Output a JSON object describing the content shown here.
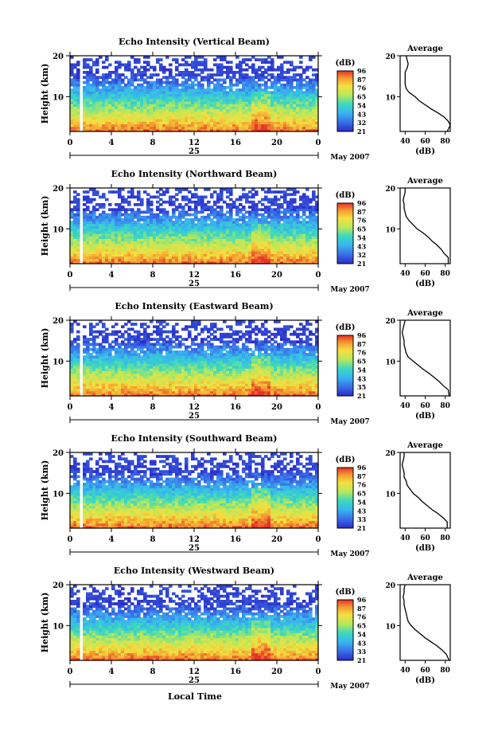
{
  "figure": {
    "xlabel": "Local Time",
    "month_label": "May 2007",
    "day_label": "25",
    "ylabel": "Height (km)",
    "colorbar_unit": "(dB)",
    "avg_title": "Average",
    "avg_xlabel": "(dB)"
  },
  "chart_data": [
    {
      "type": "heatmap",
      "title": "Echo Intensity (Vertical Beam)",
      "ylabel": "Height (km)",
      "xticks": [
        "0",
        "4",
        "8",
        "12",
        "16",
        "20",
        "0"
      ],
      "xlim": [
        0,
        24
      ],
      "yticks": [
        "10",
        "20"
      ],
      "ylim": [
        1.5,
        20
      ],
      "colorbar_ticks": [
        "96",
        "87",
        "76",
        "65",
        "54",
        "43",
        "32",
        "21"
      ],
      "avg_xticks": [
        "40",
        "60",
        "80"
      ],
      "avg_xlim": [
        35,
        85
      ],
      "avg_profile": [
        [
          1.5,
          82
        ],
        [
          3,
          85
        ],
        [
          4,
          83
        ],
        [
          5,
          79
        ],
        [
          6,
          73
        ],
        [
          7,
          66
        ],
        [
          8,
          60
        ],
        [
          9,
          54
        ],
        [
          10,
          50
        ],
        [
          11,
          44
        ],
        [
          12,
          41
        ],
        [
          13,
          40
        ],
        [
          14,
          40
        ],
        [
          15,
          40
        ],
        [
          16,
          40
        ],
        [
          17,
          42
        ],
        [
          18,
          43
        ],
        [
          19,
          42
        ],
        [
          20,
          41
        ]
      ]
    },
    {
      "type": "heatmap",
      "title": "Echo Intensity (Northward Beam)",
      "ylabel": "Height (km)",
      "xticks": [
        "0",
        "4",
        "8",
        "12",
        "16",
        "20",
        "0"
      ],
      "xlim": [
        0,
        24
      ],
      "yticks": [
        "10",
        "20"
      ],
      "ylim": [
        1.5,
        20
      ],
      "colorbar_ticks": [
        "96",
        "87",
        "76",
        "65",
        "54",
        "43",
        "32",
        "21"
      ],
      "avg_xticks": [
        "40",
        "60",
        "80"
      ],
      "avg_xlim": [
        35,
        85
      ],
      "avg_profile": [
        [
          1.5,
          83
        ],
        [
          3,
          83
        ],
        [
          4,
          79
        ],
        [
          5,
          76
        ],
        [
          6,
          72
        ],
        [
          7,
          67
        ],
        [
          8,
          63
        ],
        [
          9,
          58
        ],
        [
          10,
          52
        ],
        [
          11,
          48
        ],
        [
          12,
          44
        ],
        [
          13,
          41
        ],
        [
          14,
          40
        ],
        [
          15,
          39
        ],
        [
          16,
          39
        ],
        [
          17,
          38
        ],
        [
          18,
          39
        ],
        [
          19,
          40
        ],
        [
          20,
          40
        ]
      ]
    },
    {
      "type": "heatmap",
      "title": "Echo Intensity (Eastward Beam)",
      "ylabel": "Height (km)",
      "xticks": [
        "0",
        "4",
        "8",
        "12",
        "16",
        "20",
        "0"
      ],
      "xlim": [
        0,
        24
      ],
      "yticks": [
        "10",
        "20"
      ],
      "ylim": [
        1.5,
        20
      ],
      "colorbar_ticks": [
        "96",
        "87",
        "76",
        "65",
        "54",
        "43",
        "35",
        "21"
      ],
      "avg_xticks": [
        "40",
        "60",
        "80"
      ],
      "avg_xlim": [
        35,
        85
      ],
      "avg_profile": [
        [
          1.5,
          84
        ],
        [
          3,
          83
        ],
        [
          4,
          78
        ],
        [
          5,
          74
        ],
        [
          6,
          69
        ],
        [
          7,
          64
        ],
        [
          8,
          58
        ],
        [
          9,
          53
        ],
        [
          10,
          48
        ],
        [
          11,
          43
        ],
        [
          12,
          41
        ],
        [
          13,
          40
        ],
        [
          14,
          39
        ],
        [
          15,
          39
        ],
        [
          16,
          38
        ],
        [
          17,
          37
        ],
        [
          18,
          38
        ],
        [
          19,
          39
        ],
        [
          20,
          40
        ]
      ]
    },
    {
      "type": "heatmap",
      "title": "Echo Intensity (Southward Beam)",
      "ylabel": "Height (km)",
      "xticks": [
        "0",
        "4",
        "8",
        "12",
        "16",
        "20",
        "0"
      ],
      "xlim": [
        0,
        24
      ],
      "yticks": [
        "10",
        "20"
      ],
      "ylim": [
        1.5,
        20
      ],
      "colorbar_ticks": [
        "96",
        "87",
        "76",
        "65",
        "54",
        "43",
        "33",
        "21"
      ],
      "avg_xticks": [
        "40",
        "60",
        "80"
      ],
      "avg_xlim": [
        35,
        85
      ],
      "avg_profile": [
        [
          1.5,
          82
        ],
        [
          3,
          82
        ],
        [
          4,
          78
        ],
        [
          5,
          73
        ],
        [
          6,
          67
        ],
        [
          7,
          62
        ],
        [
          8,
          57
        ],
        [
          9,
          53
        ],
        [
          10,
          48
        ],
        [
          11,
          45
        ],
        [
          12,
          42
        ],
        [
          13,
          41
        ],
        [
          14,
          39
        ],
        [
          15,
          39
        ],
        [
          16,
          38
        ],
        [
          17,
          37
        ],
        [
          18,
          38
        ],
        [
          19,
          39
        ],
        [
          20,
          39
        ]
      ]
    },
    {
      "type": "heatmap",
      "title": "Echo Intensity (Westward Beam)",
      "ylabel": "Height (km)",
      "xticks": [
        "0",
        "4",
        "8",
        "12",
        "16",
        "20",
        "0"
      ],
      "xlim": [
        0,
        24
      ],
      "yticks": [
        "10",
        "20"
      ],
      "ylim": [
        1.5,
        20
      ],
      "colorbar_ticks": [
        "96",
        "87",
        "76",
        "65",
        "54",
        "43",
        "33",
        "21"
      ],
      "avg_xticks": [
        "40",
        "60",
        "80"
      ],
      "avg_xlim": [
        35,
        85
      ],
      "avg_profile": [
        [
          1.5,
          84
        ],
        [
          3,
          81
        ],
        [
          4,
          77
        ],
        [
          5,
          72
        ],
        [
          6,
          66
        ],
        [
          7,
          60
        ],
        [
          8,
          55
        ],
        [
          9,
          50
        ],
        [
          10,
          46
        ],
        [
          11,
          43
        ],
        [
          12,
          42
        ],
        [
          13,
          41
        ],
        [
          14,
          40
        ],
        [
          15,
          39
        ],
        [
          16,
          39
        ],
        [
          17,
          38
        ],
        [
          18,
          39
        ],
        [
          19,
          39
        ],
        [
          20,
          40
        ]
      ]
    }
  ]
}
